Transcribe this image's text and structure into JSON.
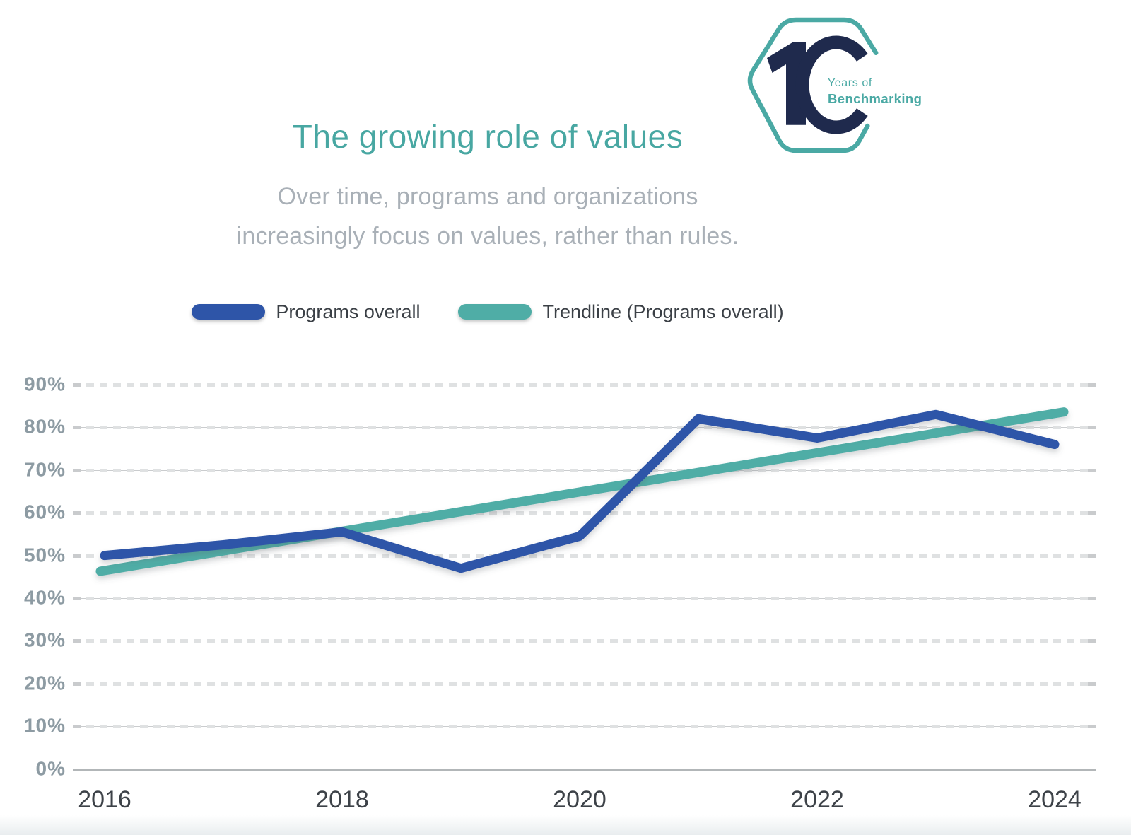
{
  "header": {
    "title": "The growing role of values",
    "subtitle_line1": "Over time, programs and organizations",
    "subtitle_line2": "increasingly focus on values, rather than rules."
  },
  "logo": {
    "number": "10",
    "line1": "Years of",
    "line2": "Benchmarking",
    "teal": "#4aa9a4",
    "navy": "#1f2a4d"
  },
  "legend": [
    {
      "label": "Programs overall",
      "color": "#2e55a8"
    },
    {
      "label": "Trendline (Programs overall)",
      "color": "#4fada6"
    }
  ],
  "chart_data": {
    "type": "line",
    "title": "The growing role of values",
    "x": [
      2016,
      2017,
      2018,
      2019,
      2020,
      2021,
      2022,
      2023,
      2024
    ],
    "x_tick_labels": [
      "2016",
      "2018",
      "2020",
      "2022",
      "2024"
    ],
    "y_tick_labels": [
      "90%",
      "80%",
      "70%",
      "60%",
      "50%",
      "40%",
      "30%",
      "20%",
      "10%",
      "0%"
    ],
    "ylim": [
      0,
      90
    ],
    "unit": "%",
    "grid": "horizontal-dashed",
    "legend_position": "top",
    "series": [
      {
        "name": "Programs overall",
        "color": "#2e55a8",
        "shape": "polyline",
        "values": [
          50,
          52.5,
          55.5,
          47,
          54.5,
          82,
          77.5,
          83,
          76
        ]
      },
      {
        "name": "Trendline (Programs overall)",
        "color": "#4fada6",
        "shape": "straight",
        "values": [
          46.3,
          51.0,
          55.6,
          60.3,
          65.0,
          69.6,
          74.3,
          78.9,
          83.6
        ]
      }
    ]
  }
}
